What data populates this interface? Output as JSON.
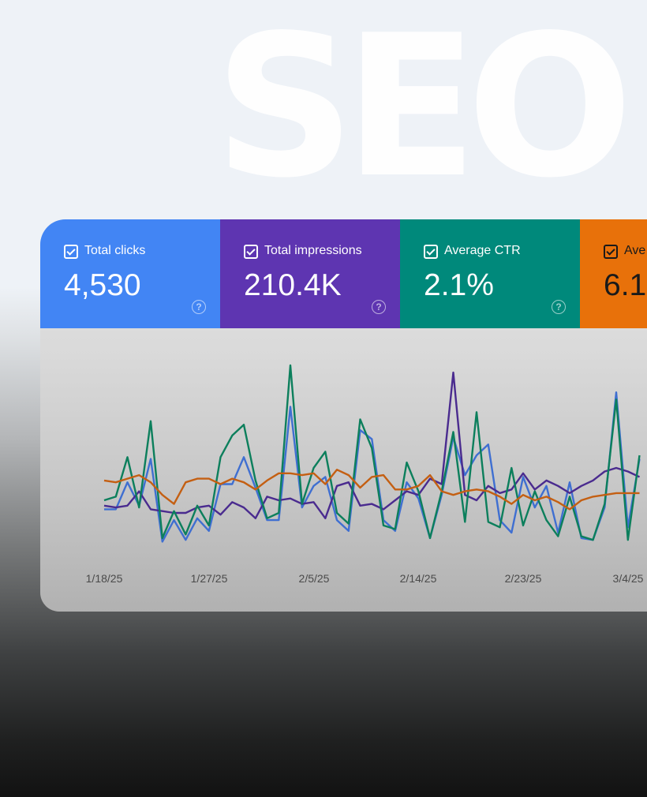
{
  "hero": {
    "word": "SEO"
  },
  "metrics": [
    {
      "label": "Total clicks",
      "value": "4,530",
      "color": "#4285f4"
    },
    {
      "label": "Total impressions",
      "value": "210.4K",
      "color": "#5e35b1"
    },
    {
      "label": "Average CTR",
      "value": "2.1%",
      "color": "#00897b"
    },
    {
      "label": "Ave",
      "value": "6.1",
      "color": "#e8710a"
    }
  ],
  "chart_data": {
    "type": "line",
    "x_ticks": [
      "1/18/25",
      "1/27/25",
      "2/5/25",
      "2/14/25",
      "2/23/25",
      "3/4/25"
    ],
    "y_axis": "none",
    "grid": false,
    "series": [
      {
        "metric": "clicks",
        "color": "#3f6fd1",
        "values": [
          0.2,
          0.2,
          0.35,
          0.22,
          0.48,
          0.02,
          0.14,
          0.03,
          0.15,
          0.08,
          0.34,
          0.34,
          0.49,
          0.32,
          0.14,
          0.14,
          0.77,
          0.21,
          0.33,
          0.38,
          0.14,
          0.08,
          0.64,
          0.59,
          0.14,
          0.08,
          0.35,
          0.26,
          0.04,
          0.28,
          0.6,
          0.39,
          0.5,
          0.56,
          0.14,
          0.07,
          0.38,
          0.21,
          0.33,
          0.07,
          0.35,
          0.04,
          0.03,
          0.21,
          0.85,
          0.1,
          0.48
        ]
      },
      {
        "metric": "impressions",
        "color": "#4a2b8f",
        "values": [
          0.22,
          0.21,
          0.22,
          0.3,
          0.2,
          0.19,
          0.18,
          0.18,
          0.21,
          0.22,
          0.17,
          0.24,
          0.21,
          0.15,
          0.27,
          0.25,
          0.26,
          0.23,
          0.24,
          0.15,
          0.33,
          0.35,
          0.22,
          0.23,
          0.2,
          0.25,
          0.3,
          0.28,
          0.37,
          0.34,
          0.96,
          0.28,
          0.25,
          0.33,
          0.29,
          0.31,
          0.4,
          0.31,
          0.36,
          0.33,
          0.29,
          0.33,
          0.36,
          0.41,
          0.43,
          0.41,
          0.38
        ]
      },
      {
        "metric": "ctr",
        "color": "#0c7f5c",
        "values": [
          0.25,
          0.27,
          0.49,
          0.21,
          0.69,
          0.04,
          0.19,
          0.06,
          0.22,
          0.11,
          0.49,
          0.61,
          0.67,
          0.36,
          0.15,
          0.18,
          1.0,
          0.23,
          0.43,
          0.52,
          0.18,
          0.12,
          0.7,
          0.54,
          0.11,
          0.09,
          0.46,
          0.3,
          0.04,
          0.3,
          0.63,
          0.13,
          0.74,
          0.13,
          0.1,
          0.43,
          0.11,
          0.3,
          0.14,
          0.05,
          0.27,
          0.05,
          0.03,
          0.23,
          0.81,
          0.03,
          0.5
        ]
      },
      {
        "metric": "position",
        "color": "#c45f12",
        "values": [
          0.36,
          0.35,
          0.37,
          0.39,
          0.35,
          0.28,
          0.23,
          0.35,
          0.37,
          0.37,
          0.34,
          0.37,
          0.35,
          0.31,
          0.36,
          0.4,
          0.4,
          0.39,
          0.4,
          0.34,
          0.42,
          0.39,
          0.32,
          0.38,
          0.39,
          0.31,
          0.31,
          0.33,
          0.39,
          0.3,
          0.28,
          0.3,
          0.31,
          0.3,
          0.27,
          0.23,
          0.28,
          0.25,
          0.27,
          0.24,
          0.2,
          0.25,
          0.27,
          0.28,
          0.29,
          0.29,
          0.29
        ]
      }
    ]
  }
}
